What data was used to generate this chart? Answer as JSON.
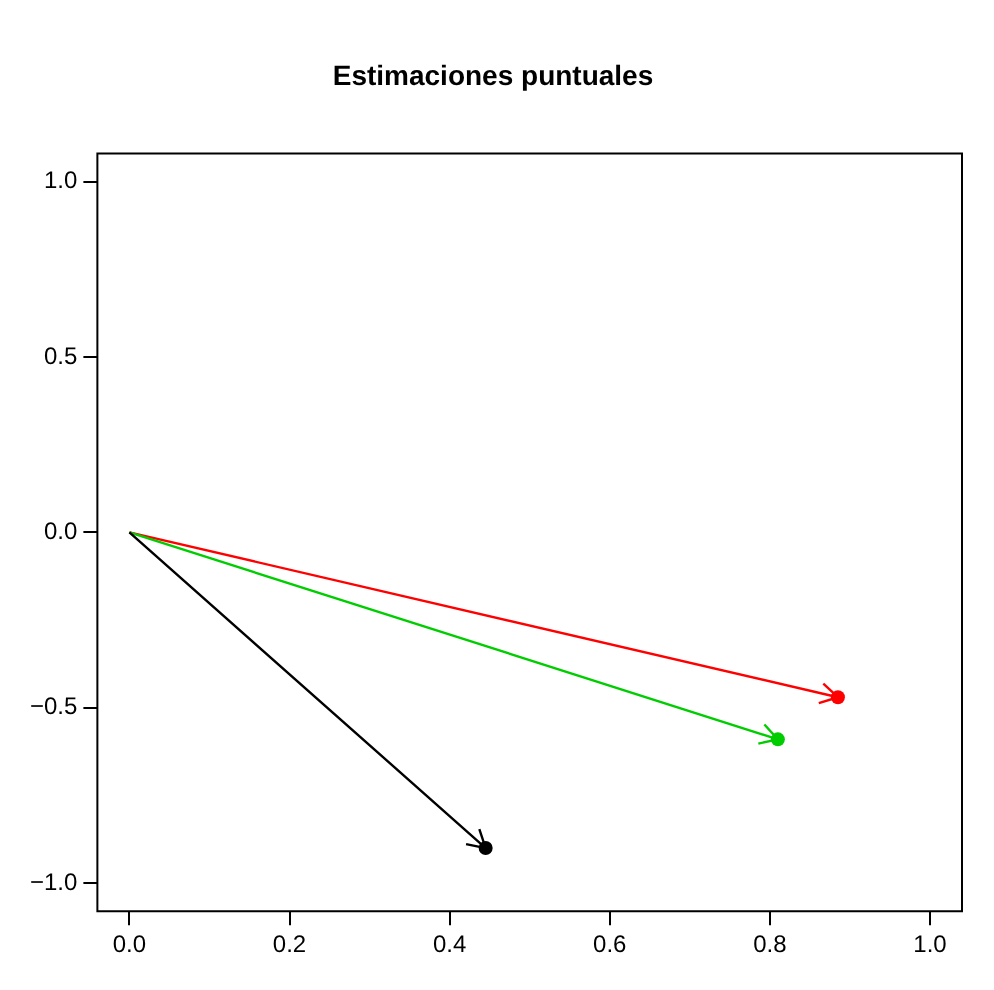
{
  "chart_data": {
    "type": "scatter",
    "title": "Estimaciones puntuales",
    "series": [
      {
        "type": "scatter",
        "x": [
          0.885,
          0.81,
          0.445
        ],
        "values": [
          -0.47,
          -0.59,
          -0.9
        ],
        "colors": [
          "#ff0000",
          "#00cd00",
          "#000000"
        ]
      }
    ],
    "xlim": [
      -0.04,
      1.04
    ],
    "ylim": [
      -1.08,
      1.08
    ],
    "xticks": [
      {
        "value": 0,
        "label": "0.0"
      },
      {
        "value": 0.2,
        "label": "0.2"
      },
      {
        "value": 0.4,
        "label": "0.4"
      },
      {
        "value": 0.6,
        "label": "0.6"
      },
      {
        "value": 0.8,
        "label": "0.8"
      },
      {
        "value": 1,
        "label": "1.0"
      }
    ],
    "yticks": [
      {
        "value": -1,
        "label": "−1.0"
      },
      {
        "value": -0.5,
        "label": "−0.5"
      },
      {
        "value": 0,
        "label": "0.0"
      },
      {
        "value": 0.5,
        "label": "0.5"
      },
      {
        "value": 1,
        "label": "1.0"
      }
    ]
  }
}
